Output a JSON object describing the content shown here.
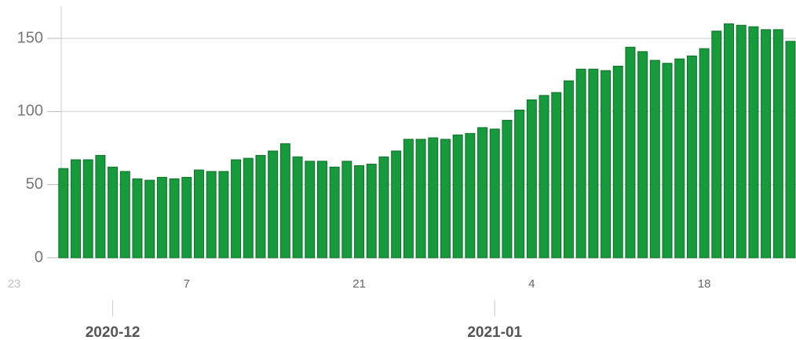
{
  "chart_data": {
    "type": "bar",
    "x": [
      "2020-11-27",
      "2020-11-28",
      "2020-11-29",
      "2020-11-30",
      "2020-12-01",
      "2020-12-02",
      "2020-12-03",
      "2020-12-04",
      "2020-12-05",
      "2020-12-06",
      "2020-12-07",
      "2020-12-08",
      "2020-12-09",
      "2020-12-10",
      "2020-12-11",
      "2020-12-12",
      "2020-12-13",
      "2020-12-14",
      "2020-12-15",
      "2020-12-16",
      "2020-12-17",
      "2020-12-18",
      "2020-12-19",
      "2020-12-20",
      "2020-12-21",
      "2020-12-22",
      "2020-12-23",
      "2020-12-24",
      "2020-12-25",
      "2020-12-26",
      "2020-12-27",
      "2020-12-28",
      "2020-12-29",
      "2020-12-30",
      "2020-12-31",
      "2021-01-01",
      "2021-01-02",
      "2021-01-03",
      "2021-01-04",
      "2021-01-05",
      "2021-01-06",
      "2021-01-07",
      "2021-01-08",
      "2021-01-09",
      "2021-01-10",
      "2021-01-11",
      "2021-01-12",
      "2021-01-13",
      "2021-01-14",
      "2021-01-15",
      "2021-01-16",
      "2021-01-17",
      "2021-01-18",
      "2021-01-19",
      "2021-01-20",
      "2021-01-21",
      "2021-01-22",
      "2021-01-23",
      "2021-01-24",
      "2021-01-25"
    ],
    "values": [
      61,
      67,
      67,
      70,
      62,
      59,
      54,
      53,
      55,
      54,
      55,
      60,
      59,
      59,
      67,
      68,
      70,
      73,
      78,
      69,
      66,
      66,
      62,
      66,
      63,
      64,
      69,
      73,
      81,
      81,
      82,
      81,
      84,
      85,
      89,
      88,
      94,
      101,
      108,
      111,
      113,
      121,
      129,
      129,
      128,
      131,
      144,
      141,
      135,
      133,
      136,
      138,
      143,
      155,
      160,
      159,
      158,
      156,
      156,
      148
    ],
    "color": "#169a3c",
    "xlim": [
      "2020-11-23",
      "2021-01-25"
    ],
    "xticks": [
      {
        "value": "2020-11-23",
        "label": "23"
      },
      {
        "value": "2020-12-07",
        "label": "7"
      },
      {
        "value": "2020-12-21",
        "label": "21"
      },
      {
        "value": "2021-01-04",
        "label": "4"
      },
      {
        "value": "2021-01-18",
        "label": "18"
      }
    ],
    "month_ticks": [
      {
        "value": "2020-12-01",
        "label": "2020-12"
      },
      {
        "value": "2021-01-01",
        "label": "2021-01"
      }
    ],
    "ylim": [
      0,
      172
    ],
    "yticks": [
      0,
      50,
      100,
      150
    ],
    "grid": true
  }
}
